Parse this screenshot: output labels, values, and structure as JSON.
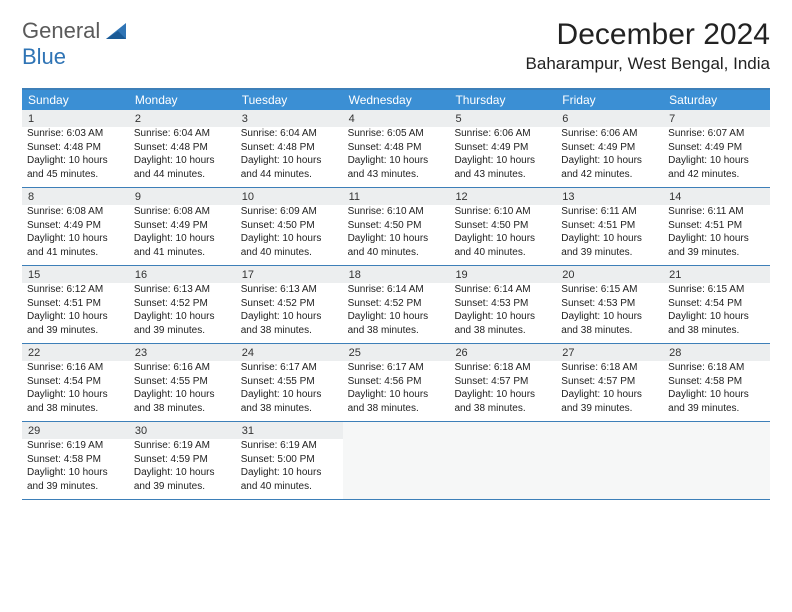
{
  "logo": {
    "text1": "General",
    "text2": "Blue"
  },
  "title": "December 2024",
  "location": "Baharampur, West Bengal, India",
  "colors": {
    "header_bar": "#3b8fd4",
    "rule": "#3d7fb8",
    "daynum_bg": "#eceeef",
    "empty_bg": "#f6f7f7",
    "logo_blue": "#2f74b5"
  },
  "dow": [
    "Sunday",
    "Monday",
    "Tuesday",
    "Wednesday",
    "Thursday",
    "Friday",
    "Saturday"
  ],
  "weeks": [
    [
      {
        "n": "1",
        "sr": "6:03 AM",
        "ss": "4:48 PM",
        "dl": "10 hours and 45 minutes."
      },
      {
        "n": "2",
        "sr": "6:04 AM",
        "ss": "4:48 PM",
        "dl": "10 hours and 44 minutes."
      },
      {
        "n": "3",
        "sr": "6:04 AM",
        "ss": "4:48 PM",
        "dl": "10 hours and 44 minutes."
      },
      {
        "n": "4",
        "sr": "6:05 AM",
        "ss": "4:48 PM",
        "dl": "10 hours and 43 minutes."
      },
      {
        "n": "5",
        "sr": "6:06 AM",
        "ss": "4:49 PM",
        "dl": "10 hours and 43 minutes."
      },
      {
        "n": "6",
        "sr": "6:06 AM",
        "ss": "4:49 PM",
        "dl": "10 hours and 42 minutes."
      },
      {
        "n": "7",
        "sr": "6:07 AM",
        "ss": "4:49 PM",
        "dl": "10 hours and 42 minutes."
      }
    ],
    [
      {
        "n": "8",
        "sr": "6:08 AM",
        "ss": "4:49 PM",
        "dl": "10 hours and 41 minutes."
      },
      {
        "n": "9",
        "sr": "6:08 AM",
        "ss": "4:49 PM",
        "dl": "10 hours and 41 minutes."
      },
      {
        "n": "10",
        "sr": "6:09 AM",
        "ss": "4:50 PM",
        "dl": "10 hours and 40 minutes."
      },
      {
        "n": "11",
        "sr": "6:10 AM",
        "ss": "4:50 PM",
        "dl": "10 hours and 40 minutes."
      },
      {
        "n": "12",
        "sr": "6:10 AM",
        "ss": "4:50 PM",
        "dl": "10 hours and 40 minutes."
      },
      {
        "n": "13",
        "sr": "6:11 AM",
        "ss": "4:51 PM",
        "dl": "10 hours and 39 minutes."
      },
      {
        "n": "14",
        "sr": "6:11 AM",
        "ss": "4:51 PM",
        "dl": "10 hours and 39 minutes."
      }
    ],
    [
      {
        "n": "15",
        "sr": "6:12 AM",
        "ss": "4:51 PM",
        "dl": "10 hours and 39 minutes."
      },
      {
        "n": "16",
        "sr": "6:13 AM",
        "ss": "4:52 PM",
        "dl": "10 hours and 39 minutes."
      },
      {
        "n": "17",
        "sr": "6:13 AM",
        "ss": "4:52 PM",
        "dl": "10 hours and 38 minutes."
      },
      {
        "n": "18",
        "sr": "6:14 AM",
        "ss": "4:52 PM",
        "dl": "10 hours and 38 minutes."
      },
      {
        "n": "19",
        "sr": "6:14 AM",
        "ss": "4:53 PM",
        "dl": "10 hours and 38 minutes."
      },
      {
        "n": "20",
        "sr": "6:15 AM",
        "ss": "4:53 PM",
        "dl": "10 hours and 38 minutes."
      },
      {
        "n": "21",
        "sr": "6:15 AM",
        "ss": "4:54 PM",
        "dl": "10 hours and 38 minutes."
      }
    ],
    [
      {
        "n": "22",
        "sr": "6:16 AM",
        "ss": "4:54 PM",
        "dl": "10 hours and 38 minutes."
      },
      {
        "n": "23",
        "sr": "6:16 AM",
        "ss": "4:55 PM",
        "dl": "10 hours and 38 minutes."
      },
      {
        "n": "24",
        "sr": "6:17 AM",
        "ss": "4:55 PM",
        "dl": "10 hours and 38 minutes."
      },
      {
        "n": "25",
        "sr": "6:17 AM",
        "ss": "4:56 PM",
        "dl": "10 hours and 38 minutes."
      },
      {
        "n": "26",
        "sr": "6:18 AM",
        "ss": "4:57 PM",
        "dl": "10 hours and 38 minutes."
      },
      {
        "n": "27",
        "sr": "6:18 AM",
        "ss": "4:57 PM",
        "dl": "10 hours and 39 minutes."
      },
      {
        "n": "28",
        "sr": "6:18 AM",
        "ss": "4:58 PM",
        "dl": "10 hours and 39 minutes."
      }
    ],
    [
      {
        "n": "29",
        "sr": "6:19 AM",
        "ss": "4:58 PM",
        "dl": "10 hours and 39 minutes."
      },
      {
        "n": "30",
        "sr": "6:19 AM",
        "ss": "4:59 PM",
        "dl": "10 hours and 39 minutes."
      },
      {
        "n": "31",
        "sr": "6:19 AM",
        "ss": "5:00 PM",
        "dl": "10 hours and 40 minutes."
      },
      null,
      null,
      null,
      null
    ]
  ],
  "labels": {
    "sunrise": "Sunrise:",
    "sunset": "Sunset:",
    "daylight": "Daylight:"
  }
}
